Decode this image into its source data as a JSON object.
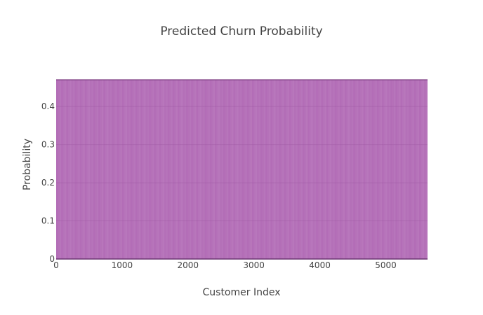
{
  "chart_data": {
    "type": "area",
    "title": "Predicted Churn Probability",
    "xlabel": "Customer Index",
    "ylabel": "Probability",
    "xlim": [
      0,
      5634
    ],
    "ylim": [
      0,
      0.47
    ],
    "x_ticks": [
      0,
      1000,
      2000,
      3000,
      4000,
      5000
    ],
    "x_tick_labels": [
      "0",
      "1000",
      "2000",
      "3000",
      "4000",
      "5000"
    ],
    "y_ticks": [
      0,
      0.1,
      0.2,
      0.3,
      0.4
    ],
    "y_tick_labels": [
      "0",
      "0.1",
      "0.2",
      "0.3",
      "0.4"
    ],
    "series": [
      {
        "x_start": 0,
        "x_end": 5634,
        "values_min": 0,
        "values_max": 0.47,
        "color": "#b36db7",
        "edge_color": "#7d3f82"
      }
    ],
    "grid": true,
    "legend": "none"
  }
}
